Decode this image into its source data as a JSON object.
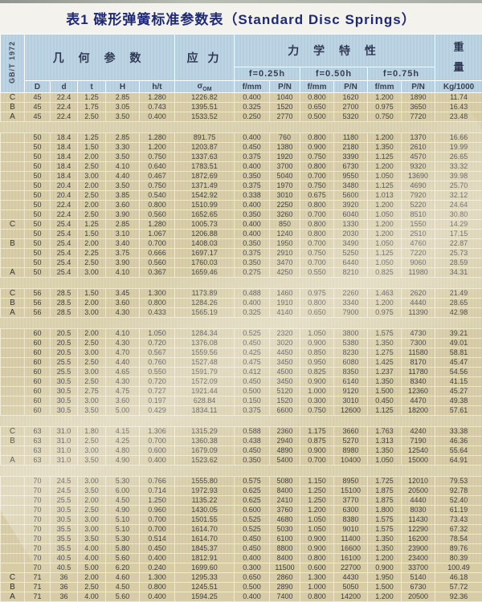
{
  "title": "表1 碟形弹簧标准参数表（Standard Disc Springs）",
  "standard": "GB/T 1972",
  "header": {
    "geometry": "几 何 参 数",
    "stress": "应 力",
    "mechanical": "力 学 特 性",
    "weight_top": "重",
    "weight_bottom": "量",
    "deflections": [
      "f=0.25h",
      "f=0.50h",
      "f=0.75h"
    ],
    "col_D": "D",
    "col_d": "d",
    "col_t": "t",
    "col_H": "H",
    "col_ht": "h/t",
    "sigma_symbol": "σ",
    "sigma_sub": "OM",
    "col_f1": "f/mm",
    "col_p1": "P/N",
    "col_f2": "f/mm",
    "col_p2": "P/N",
    "col_f3": "f/mm",
    "col_p3": "P/N",
    "col_kg": "Kg/1000"
  },
  "table": {
    "rows": [
      {
        "type": "data",
        "cells": [
          "C",
          "45",
          "22.4",
          "1.25",
          "2.85",
          "1.280",
          "1226.82",
          "0.400",
          "1040",
          "0.800",
          "1620",
          "1.200",
          "1890",
          "11.74"
        ]
      },
      {
        "type": "data",
        "cells": [
          "B",
          "45",
          "22.4",
          "1.75",
          "3.05",
          "0.743",
          "1395.51",
          "0.325",
          "1520",
          "0.650",
          "2700",
          "0.975",
          "3650",
          "16.43"
        ]
      },
      {
        "type": "data",
        "cells": [
          "A",
          "45",
          "22.4",
          "2.50",
          "3.50",
          "0.400",
          "1533.52",
          "0.250",
          "2770",
          "0.500",
          "5320",
          "0.750",
          "7720",
          "23.48"
        ]
      },
      {
        "type": "spacer"
      },
      {
        "type": "data",
        "cells": [
          "",
          "50",
          "18.4",
          "1.25",
          "2.85",
          "1.280",
          "891.75",
          "0.400",
          "760",
          "0.800",
          "1180",
          "1.200",
          "1370",
          "16.66"
        ]
      },
      {
        "type": "data",
        "cells": [
          "",
          "50",
          "18.4",
          "1.50",
          "3.30",
          "1.200",
          "1203.87",
          "0.450",
          "1380",
          "0.900",
          "2180",
          "1.350",
          "2610",
          "19.99"
        ]
      },
      {
        "type": "data",
        "cells": [
          "",
          "50",
          "18.4",
          "2.00",
          "3.50",
          "0.750",
          "1337.63",
          "0.375",
          "1920",
          "0.750",
          "3390",
          "1.125",
          "4570",
          "26.65"
        ]
      },
      {
        "type": "data",
        "cells": [
          "",
          "50",
          "18.4",
          "2.50",
          "4.10",
          "0.640",
          "1783.51",
          "0.400",
          "3700",
          "0.800",
          "6730",
          "1.200",
          "9320",
          "33.32"
        ]
      },
      {
        "type": "data",
        "cells": [
          "",
          "50",
          "18.4",
          "3.00",
          "4.40",
          "0.467",
          "1872.69",
          "0.350",
          "5040",
          "0.700",
          "9550",
          "1.050",
          "13690",
          "39.98"
        ]
      },
      {
        "type": "data",
        "cells": [
          "",
          "50",
          "20.4",
          "2.00",
          "3.50",
          "0.750",
          "1371.49",
          "0.375",
          "1970",
          "0.750",
          "3480",
          "1.125",
          "4690",
          "25.70"
        ]
      },
      {
        "type": "data",
        "cells": [
          "",
          "50",
          "20.4",
          "2.50",
          "3.85",
          "0.540",
          "1542.92",
          "0.338",
          "3010",
          "0.675",
          "5600",
          "1.013",
          "7920",
          "32.12"
        ]
      },
      {
        "type": "data",
        "cells": [
          "",
          "50",
          "22.4",
          "2.00",
          "3.60",
          "0.800",
          "1510.99",
          "0.400",
          "2250",
          "0.800",
          "3920",
          "1.200",
          "5220",
          "24.64"
        ]
      },
      {
        "type": "data",
        "cells": [
          "",
          "50",
          "22.4",
          "2.50",
          "3.90",
          "0.560",
          "1652.65",
          "0.350",
          "3260",
          "0.700",
          "6040",
          "1.050",
          "8510",
          "30.80"
        ]
      },
      {
        "type": "data",
        "cells": [
          "C",
          "50",
          "25.4",
          "1.25",
          "2.85",
          "1.280",
          "1005.73",
          "0.400",
          "850",
          "0.800",
          "1330",
          "1.200",
          "1550",
          "14.29"
        ]
      },
      {
        "type": "data",
        "cells": [
          "",
          "50",
          "25.4",
          "1.50",
          "3.10",
          "1.067",
          "1206.88",
          "0.400",
          "1240",
          "0.800",
          "2030",
          "1.200",
          "2510",
          "17.15"
        ]
      },
      {
        "type": "data",
        "cells": [
          "B",
          "50",
          "25.4",
          "2.00",
          "3.40",
          "0.700",
          "1408.03",
          "0.350",
          "1950",
          "0.700",
          "3490",
          "1.050",
          "4760",
          "22.87"
        ]
      },
      {
        "type": "data",
        "cells": [
          "",
          "50",
          "25.4",
          "2.25",
          "3.75",
          "0.666",
          "1697.17",
          "0.375",
          "2910",
          "0.750",
          "5250",
          "1.125",
          "7220",
          "25.73"
        ]
      },
      {
        "type": "data",
        "cells": [
          "",
          "50",
          "25.4",
          "2.50",
          "3.90",
          "0.560",
          "1760.03",
          "0.350",
          "3470",
          "0.700",
          "6440",
          "1.050",
          "9060",
          "28.59"
        ]
      },
      {
        "type": "data",
        "cells": [
          "A",
          "50",
          "25.4",
          "3.00",
          "4.10",
          "0.367",
          "1659.46",
          "0.275",
          "4250",
          "0.550",
          "8210",
          "0.825",
          "11980",
          "34.31"
        ]
      },
      {
        "type": "spacer"
      },
      {
        "type": "data",
        "cells": [
          "C",
          "56",
          "28.5",
          "1.50",
          "3.45",
          "1.300",
          "1173.89",
          "0.488",
          "1460",
          "0.975",
          "2260",
          "1.463",
          "2620",
          "21.49"
        ]
      },
      {
        "type": "data",
        "cells": [
          "B",
          "56",
          "28.5",
          "2.00",
          "3.60",
          "0.800",
          "1284.26",
          "0.400",
          "1910",
          "0.800",
          "3340",
          "1.200",
          "4440",
          "28.65"
        ]
      },
      {
        "type": "data",
        "cells": [
          "A",
          "56",
          "28.5",
          "3.00",
          "4.30",
          "0.433",
          "1565.19",
          "0.325",
          "4140",
          "0.650",
          "7900",
          "0.975",
          "11390",
          "42.98"
        ]
      },
      {
        "type": "spacer"
      },
      {
        "type": "data",
        "cells": [
          "",
          "60",
          "20.5",
          "2.00",
          "4.10",
          "1.050",
          "1284.34",
          "0.525",
          "2320",
          "1.050",
          "3800",
          "1.575",
          "4730",
          "39.21"
        ]
      },
      {
        "type": "data",
        "cells": [
          "",
          "60",
          "20.5",
          "2.50",
          "4.30",
          "0.720",
          "1376.08",
          "0.450",
          "3020",
          "0.900",
          "5380",
          "1.350",
          "7300",
          "49.01"
        ]
      },
      {
        "type": "data",
        "cells": [
          "",
          "60",
          "20.5",
          "3.00",
          "4.70",
          "0.567",
          "1559.56",
          "0.425",
          "4450",
          "0.850",
          "8230",
          "1.275",
          "11580",
          "58.81"
        ]
      },
      {
        "type": "data",
        "cells": [
          "",
          "60",
          "25.5",
          "2.50",
          "4.40",
          "0.760",
          "1527.48",
          "0.475",
          "3450",
          "0.950",
          "6080",
          "1.425",
          "8170",
          "45.47"
        ]
      },
      {
        "type": "data",
        "cells": [
          "",
          "60",
          "25.5",
          "3.00",
          "4.65",
          "0.550",
          "1591.79",
          "0.412",
          "4500",
          "0.825",
          "8350",
          "1.237",
          "11780",
          "54.56"
        ]
      },
      {
        "type": "data",
        "cells": [
          "",
          "60",
          "30.5",
          "2.50",
          "4.30",
          "0.720",
          "1572.09",
          "0.450",
          "3450",
          "0.900",
          "6140",
          "1.350",
          "8340",
          "41.15"
        ]
      },
      {
        "type": "data",
        "cells": [
          "",
          "60",
          "30.5",
          "2.75",
          "4.75",
          "0.727",
          "1921.44",
          "0.500",
          "5120",
          "1.000",
          "9120",
          "1.500",
          "12360",
          "45.27"
        ]
      },
      {
        "type": "data",
        "cells": [
          "",
          "60",
          "30.5",
          "3.00",
          "3.60",
          "0.197",
          "628.84",
          "0.150",
          "1520",
          "0.300",
          "3010",
          "0.450",
          "4470",
          "49.38"
        ]
      },
      {
        "type": "data",
        "cells": [
          "",
          "60",
          "30.5",
          "3.50",
          "5.00",
          "0.429",
          "1834.11",
          "0.375",
          "6600",
          "0.750",
          "12600",
          "1.125",
          "18200",
          "57.61"
        ]
      },
      {
        "type": "spacer"
      },
      {
        "type": "data",
        "cells": [
          "C",
          "63",
          "31.0",
          "1.80",
          "4.15",
          "1.306",
          "1315.29",
          "0.588",
          "2360",
          "1.175",
          "3660",
          "1.763",
          "4240",
          "33.38"
        ]
      },
      {
        "type": "data",
        "cells": [
          "B",
          "63",
          "31.0",
          "2.50",
          "4.25",
          "0.700",
          "1360.38",
          "0.438",
          "2940",
          "0.875",
          "5270",
          "1.313",
          "7190",
          "46.36"
        ]
      },
      {
        "type": "data",
        "cells": [
          "",
          "63",
          "31.0",
          "3.00",
          "4.80",
          "0.600",
          "1679.09",
          "0.450",
          "4890",
          "0.900",
          "8980",
          "1.350",
          "12540",
          "55.64"
        ]
      },
      {
        "type": "data",
        "cells": [
          "A",
          "63",
          "31.0",
          "3.50",
          "4.90",
          "0.400",
          "1523.62",
          "0.350",
          "5400",
          "0.700",
          "10400",
          "1.050",
          "15000",
          "64.91"
        ]
      },
      {
        "type": "spacer"
      },
      {
        "type": "data",
        "cells": [
          "",
          "70",
          "24.5",
          "3.00",
          "5.30",
          "0.766",
          "1555.80",
          "0.575",
          "5080",
          "1.150",
          "8950",
          "1.725",
          "12010",
          "79.53"
        ]
      },
      {
        "type": "data",
        "cells": [
          "",
          "70",
          "24.5",
          "3.50",
          "6.00",
          "0.714",
          "1972.93",
          "0.625",
          "8400",
          "1.250",
          "15100",
          "1.875",
          "20500",
          "92.78"
        ]
      },
      {
        "type": "data",
        "cells": [
          "",
          "70",
          "25.5",
          "2.00",
          "4.50",
          "1.250",
          "1135.22",
          "0.625",
          "2410",
          "1.250",
          "3770",
          "1.875",
          "4440",
          "52.40"
        ]
      },
      {
        "type": "data",
        "cells": [
          "",
          "70",
          "30.5",
          "2.50",
          "4.90",
          "0.960",
          "1430.05",
          "0.600",
          "3760",
          "1.200",
          "6300",
          "1.800",
          "8030",
          "61.19"
        ]
      },
      {
        "type": "data",
        "cells": [
          "",
          "70",
          "30.5",
          "3.00",
          "5.10",
          "0.700",
          "1501.55",
          "0.525",
          "4680",
          "1.050",
          "8380",
          "1.575",
          "11430",
          "73.43"
        ]
      },
      {
        "type": "data",
        "cells": [
          "",
          "70",
          "35.5",
          "3.00",
          "5.10",
          "0.700",
          "1614.70",
          "0.525",
          "5030",
          "1.050",
          "9010",
          "1.575",
          "12290",
          "67.32"
        ]
      },
      {
        "type": "data",
        "cells": [
          "",
          "70",
          "35.5",
          "3.50",
          "5.30",
          "0.514",
          "1614.70",
          "0.450",
          "6100",
          "0.900",
          "11400",
          "1.350",
          "16200",
          "78.54"
        ]
      },
      {
        "type": "data",
        "cells": [
          "",
          "70",
          "35.5",
          "4.00",
          "5.80",
          "0.450",
          "1845.37",
          "0.450",
          "8800",
          "0.900",
          "16600",
          "1.350",
          "23900",
          "89.76"
        ]
      },
      {
        "type": "data",
        "cells": [
          "",
          "70",
          "40.5",
          "4.00",
          "5.60",
          "0.400",
          "1812.91",
          "0.400",
          "8400",
          "0.800",
          "16100",
          "1.200",
          "23400",
          "80.39"
        ]
      },
      {
        "type": "data",
        "cells": [
          "",
          "70",
          "40.5",
          "5.00",
          "6.20",
          "0.240",
          "1699.60",
          "0.300",
          "11500",
          "0.600",
          "22700",
          "0.900",
          "33700",
          "100.49"
        ]
      },
      {
        "type": "data",
        "cells": [
          "C",
          "71",
          "36",
          "2.00",
          "4.60",
          "1.300",
          "1295.33",
          "0.650",
          "2860",
          "1.300",
          "4430",
          "1.950",
          "5140",
          "46.18"
        ]
      },
      {
        "type": "data",
        "cells": [
          "B",
          "71",
          "36",
          "2.50",
          "4.50",
          "0.800",
          "1245.51",
          "0.500",
          "2890",
          "1.000",
          "5050",
          "1.500",
          "6730",
          "57.72"
        ]
      },
      {
        "type": "data",
        "cells": [
          "A",
          "71",
          "36",
          "4.00",
          "5.60",
          "0.400",
          "1594.25",
          "0.400",
          "7400",
          "0.800",
          "14200",
          "1.200",
          "20500",
          "92.36"
        ]
      }
    ]
  },
  "colors": {
    "header_blue": "#b8d2e2",
    "row_beige": "#d7cca6",
    "title_navy": "#1e2a78",
    "grid_line": "#efe8d2"
  }
}
